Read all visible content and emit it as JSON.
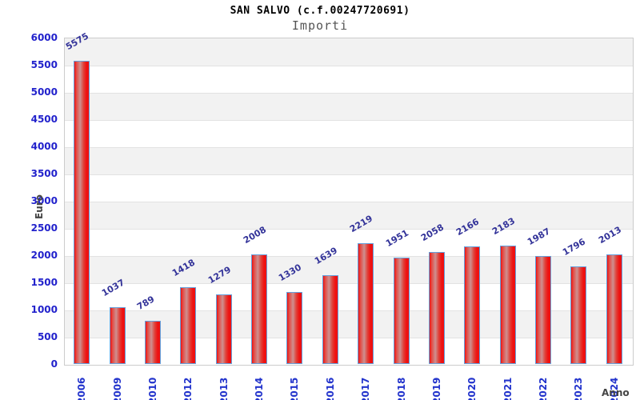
{
  "chart_data": {
    "type": "bar",
    "title": "SAN SALVO (c.f.00247720691)",
    "subtitle": "Importi",
    "xlabel": "Anno",
    "ylabel": "Euro",
    "categories": [
      "2006",
      "2009",
      "2010",
      "2012",
      "2013",
      "2014",
      "2015",
      "2016",
      "2017",
      "2018",
      "2019",
      "2020",
      "2021",
      "2022",
      "2023",
      "2024"
    ],
    "values": [
      5575,
      1037,
      789,
      1418,
      1279,
      2008,
      1330,
      1639,
      2219,
      1951,
      2058,
      2166,
      2183,
      1987,
      1796,
      2013
    ],
    "ylim": [
      0,
      6000
    ],
    "ytick_step": 500,
    "yticks": [
      0,
      500,
      1000,
      1500,
      2000,
      2500,
      3000,
      3500,
      4000,
      4500,
      5000,
      5500,
      6000
    ],
    "grid": "alternating-horizontal-bands",
    "legend": "none",
    "value_labels": "above-bars-rotated",
    "colors": {
      "bar_fill_edge": "#ee1111",
      "bar_fill_center": "#cf8f8f",
      "bar_border": "#64a0dc",
      "y_tick_label": "#2222cc",
      "x_tick_label": "#2233cc",
      "value_label": "#333399",
      "axis_title": "#444444",
      "band_gray": "#f2f2f2",
      "band_white": "#ffffff",
      "band_line": "#e2e2e2",
      "plot_border": "#cccccc",
      "title": "#000000",
      "subtitle": "#555555"
    }
  }
}
